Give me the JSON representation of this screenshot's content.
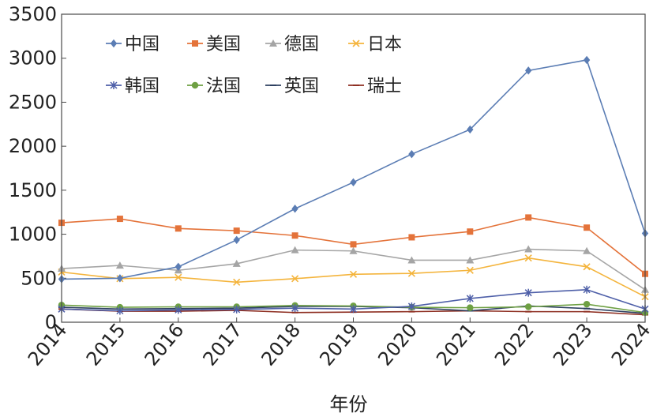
{
  "chart_data": {
    "type": "line",
    "xlabel": "年份",
    "ylabel": "",
    "ylim": [
      0,
      3500
    ],
    "yticks": [
      0,
      500,
      1000,
      1500,
      2000,
      2500,
      3000,
      3500
    ],
    "categories": [
      "2014",
      "2015",
      "2016",
      "2017",
      "2018",
      "2019",
      "2020",
      "2021",
      "2022",
      "2023",
      "2024"
    ],
    "grid": false,
    "legend_position": "top-left, inside, two rows",
    "series": [
      {
        "name": "中国",
        "color": "#5b7db4",
        "marker": "diamond",
        "values": [
          490,
          500,
          630,
          935,
          1290,
          1590,
          1910,
          2190,
          2860,
          2980,
          1010
        ]
      },
      {
        "name": "美国",
        "color": "#e4733a",
        "marker": "square",
        "values": [
          1130,
          1175,
          1065,
          1040,
          985,
          885,
          965,
          1030,
          1190,
          1075,
          550
        ]
      },
      {
        "name": "德国",
        "color": "#a5a5a5",
        "marker": "triangle",
        "values": [
          610,
          645,
          590,
          665,
          820,
          810,
          705,
          705,
          830,
          810,
          370
        ]
      },
      {
        "name": "日本",
        "color": "#f4b43c",
        "marker": "x",
        "values": [
          570,
          495,
          510,
          455,
          495,
          545,
          555,
          590,
          730,
          630,
          290
        ]
      },
      {
        "name": "韩国",
        "color": "#4e5fa8",
        "marker": "asterisk",
        "values": [
          150,
          130,
          140,
          145,
          160,
          150,
          180,
          270,
          335,
          370,
          150
        ]
      },
      {
        "name": "法国",
        "color": "#6ea043",
        "marker": "circle",
        "values": [
          195,
          170,
          175,
          175,
          190,
          185,
          170,
          165,
          175,
          205,
          110
        ]
      },
      {
        "name": "英国",
        "color": "#2e4060",
        "marker": "dash",
        "values": [
          170,
          150,
          155,
          160,
          180,
          180,
          165,
          130,
          185,
          155,
          100
        ]
      },
      {
        "name": "瑞士",
        "color": "#8e2f22",
        "marker": "dash",
        "values": [
          150,
          125,
          125,
          135,
          110,
          115,
          120,
          130,
          120,
          120,
          85
        ]
      }
    ]
  }
}
